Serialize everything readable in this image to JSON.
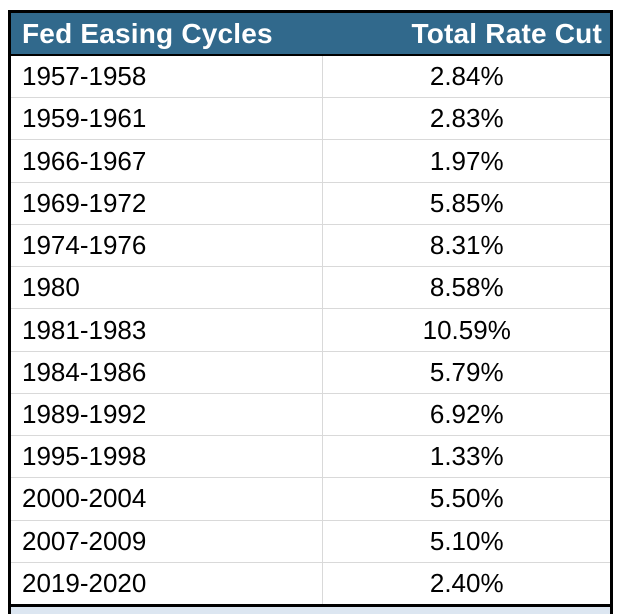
{
  "table": {
    "header": {
      "col1": "Fed Easing Cycles",
      "col2": "Total Rate Cut"
    },
    "rows": [
      {
        "cycle": "1957-1958",
        "cut": "2.84%"
      },
      {
        "cycle": "1959-1961",
        "cut": "2.83%"
      },
      {
        "cycle": "1966-1967",
        "cut": "1.97%"
      },
      {
        "cycle": "1969-1972",
        "cut": "5.85%"
      },
      {
        "cycle": "1974-1976",
        "cut": "8.31%"
      },
      {
        "cycle": "1980",
        "cut": "8.58%"
      },
      {
        "cycle": "1981-1983",
        "cut": "10.59%"
      },
      {
        "cycle": "1984-1986",
        "cut": "5.79%"
      },
      {
        "cycle": "1989-1992",
        "cut": "6.92%"
      },
      {
        "cycle": "1995-1998",
        "cut": "1.33%"
      },
      {
        "cycle": "2000-2004",
        "cut": "5.50%"
      },
      {
        "cycle": "2007-2009",
        "cut": "5.10%"
      },
      {
        "cycle": "2019-2020",
        "cut": "2.40%"
      }
    ]
  },
  "colors": {
    "header_bg": "#31698C",
    "header_text": "#FFFFFF",
    "body_text": "#000000",
    "grid_line": "#D9D9D9",
    "outer_border": "#000000",
    "partial_next_row_bg": "#DCE6F1"
  },
  "chart_data": {
    "type": "table",
    "title": "",
    "columns": [
      "Fed Easing Cycles",
      "Total Rate Cut"
    ],
    "categories": [
      "1957-1958",
      "1959-1961",
      "1966-1967",
      "1969-1972",
      "1974-1976",
      "1980",
      "1981-1983",
      "1984-1986",
      "1989-1992",
      "1995-1998",
      "2000-2004",
      "2007-2009",
      "2019-2020"
    ],
    "values": [
      2.84,
      2.83,
      1.97,
      5.85,
      8.31,
      8.58,
      10.59,
      5.79,
      6.92,
      1.33,
      5.5,
      5.1,
      2.4
    ],
    "unit": "%",
    "layout": {
      "header_fill": "#31698C",
      "gridlines": true,
      "outer_border": true
    }
  }
}
